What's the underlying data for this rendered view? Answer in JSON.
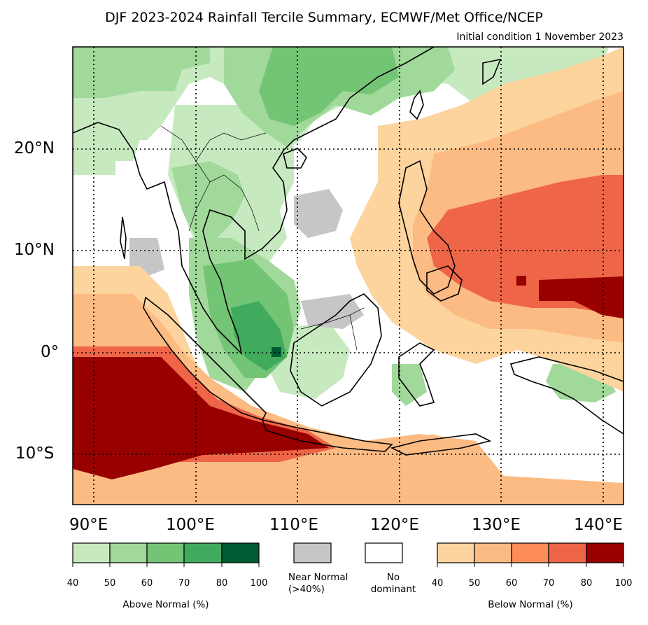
{
  "header": {
    "title": "DJF 2023-2024 Rainfall Tercile Summary, ECMWF/Met Office/NCEP",
    "subtitle": "Initial condition 1 November 2023"
  },
  "axes": {
    "lat_labels": [
      "20°N",
      "10°N",
      "0°",
      "10°S"
    ],
    "lon_labels": [
      "90°E",
      "100°E",
      "110°E",
      "120°E",
      "130°E",
      "140°E"
    ],
    "lon_range": [
      87.9,
      141.9
    ],
    "lat_range": [
      -15,
      30
    ],
    "gridlines": "dotted"
  },
  "colorbars": {
    "above_normal": {
      "caption": "Above Normal (%)",
      "ticks": [
        "40",
        "50",
        "60",
        "70",
        "80",
        "100"
      ],
      "colors": [
        "#c7e9c0",
        "#a1d99b",
        "#74c476",
        "#41ab5d",
        "#005a32"
      ]
    },
    "near_normal": {
      "caption": "Near Normal\n(>40%)",
      "color": "#c6c6c6"
    },
    "no_dominant": {
      "caption": "No\ndominant",
      "color": "#ffffff"
    },
    "below_normal": {
      "caption": "Below Normal (%)",
      "ticks": [
        "40",
        "50",
        "60",
        "70",
        "80",
        "100"
      ],
      "colors": [
        "#fdd49e",
        "#fdbb84",
        "#fc8d59",
        "#ef6548",
        "#990000"
      ]
    }
  }
}
